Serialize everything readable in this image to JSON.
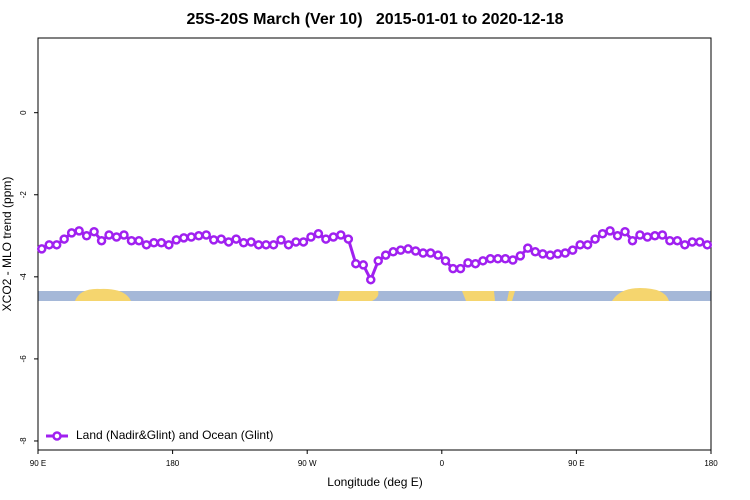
{
  "chart_data": {
    "type": "line",
    "title": "25S-20S March (Ver 10)   2015-01-01 to 2020-12-18",
    "x_label": "Longitude (deg E)",
    "y_label": "XCO2 - MLO trend (ppm)",
    "xlim": [
      90,
      540
    ],
    "xticks": [
      {
        "value": 90,
        "label": "90 E"
      },
      {
        "value": 180,
        "label": "180"
      },
      {
        "value": 270,
        "label": "90 W"
      },
      {
        "value": 360,
        "label": "0"
      },
      {
        "value": 450,
        "label": "90 E"
      },
      {
        "value": 540,
        "label": "180"
      }
    ],
    "ylim": [
      -8.22,
      1.82
    ],
    "yticks": [
      -8,
      -6,
      -4,
      -2,
      0
    ],
    "legend": "bottom-left",
    "x": [
      92.5,
      97.5,
      102.5,
      107.5,
      112.5,
      117.5,
      122.5,
      127.5,
      132.5,
      137.5,
      142.5,
      147.5,
      152.5,
      157.5,
      162.5,
      167.5,
      172.5,
      177.5,
      182.5,
      187.5,
      192.5,
      197.5,
      202.5,
      207.5,
      212.5,
      217.5,
      222.5,
      227.5,
      232.5,
      237.5,
      242.5,
      247.5,
      252.5,
      257.5,
      262.5,
      267.5,
      272.5,
      277.5,
      282.5,
      287.5,
      292.5,
      297.5,
      302.5,
      307.5,
      312.5,
      317.5,
      322.5,
      327.5,
      332.5,
      337.5,
      342.5,
      347.5,
      352.5,
      357.5,
      362.5,
      367.5,
      372.5,
      377.5,
      382.5,
      387.5,
      392.5,
      397.5,
      402.5,
      407.5,
      412.5,
      417.5,
      422.5,
      427.5,
      432.5,
      437.5,
      442.5,
      447.5,
      452.5,
      457.5,
      462.5,
      467.5,
      472.5,
      477.5,
      482.5,
      487.5,
      492.5,
      497.5,
      502.5,
      507.5,
      512.5,
      517.5,
      522.5,
      527.5,
      532.5,
      537.5
    ],
    "series": [
      {
        "name": "Land (Nadir&Glint) and Ocean (Glint)",
        "color": "#a020f0",
        "values": [
          -3.32,
          -3.22,
          -3.22,
          -3.08,
          -2.93,
          -2.88,
          -3.0,
          -2.9,
          -3.12,
          -2.98,
          -3.03,
          -2.98,
          -3.12,
          -3.12,
          -3.22,
          -3.17,
          -3.17,
          -3.22,
          -3.1,
          -3.05,
          -3.03,
          -3.0,
          -2.98,
          -3.1,
          -3.08,
          -3.15,
          -3.08,
          -3.17,
          -3.15,
          -3.22,
          -3.22,
          -3.22,
          -3.1,
          -3.22,
          -3.15,
          -3.15,
          -3.03,
          -2.95,
          -3.08,
          -3.03,
          -2.98,
          -3.08,
          -3.68,
          -3.71,
          -4.07,
          -3.61,
          -3.47,
          -3.39,
          -3.35,
          -3.32,
          -3.37,
          -3.42,
          -3.42,
          -3.47,
          -3.61,
          -3.8,
          -3.8,
          -3.66,
          -3.68,
          -3.61,
          -3.56,
          -3.56,
          -3.56,
          -3.59,
          -3.49,
          -3.3,
          -3.39,
          -3.44,
          -3.47,
          -3.44,
          -3.42,
          -3.35,
          -3.22,
          -3.22,
          -3.08,
          -2.95,
          -2.88,
          -3.0,
          -2.9,
          -3.12,
          -2.98,
          -3.03,
          -3.0,
          -2.98,
          -3.12,
          -3.12,
          -3.22,
          -3.15,
          -3.15,
          -3.22
        ]
      }
    ]
  }
}
